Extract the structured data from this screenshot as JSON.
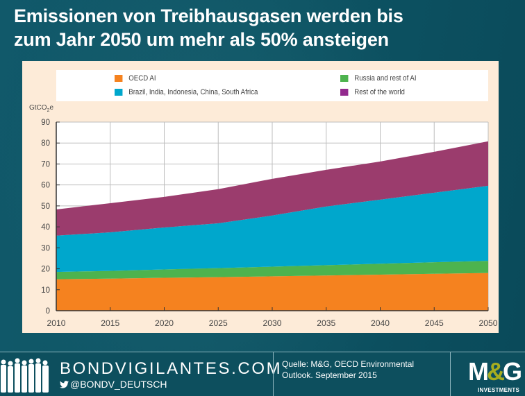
{
  "title_line1": "Emissionen von Treibhausgasen werden bis",
  "title_line2": "zum Jahr 2050 um mehr als 50% ansteigen",
  "chart_data": {
    "type": "area",
    "stacked": true,
    "title": "",
    "ylabel": "GtCO2e",
    "ylabel_main": "GtCO",
    "ylabel_sub": "2",
    "ylabel_suffix": "e",
    "xlabel": "",
    "ylim": [
      0,
      90
    ],
    "yticks": [
      0,
      10,
      20,
      30,
      40,
      50,
      60,
      70,
      80,
      90
    ],
    "xlim": [
      2010,
      2050
    ],
    "x": [
      2010,
      2015,
      2020,
      2025,
      2030,
      2035,
      2040,
      2045,
      2050
    ],
    "grid": true,
    "legend_position": "top",
    "series": [
      {
        "name": "OECD AI",
        "color": "#f5821f",
        "legend_color": "#f5821f",
        "values": [
          15.0,
          15.3,
          15.7,
          16.0,
          16.4,
          16.8,
          17.2,
          17.6,
          18.0
        ]
      },
      {
        "name": "Russia and rest of AI",
        "color": "#4db34e",
        "legend_color": "#4db34e",
        "values": [
          3.5,
          3.7,
          4.0,
          4.3,
          4.6,
          4.9,
          5.2,
          5.5,
          5.8
        ]
      },
      {
        "name": "Brazil, India, Indonesia, China, South Africa",
        "color": "#00a7cc",
        "legend_color": "#00a7cc",
        "values": [
          17.3,
          18.4,
          20.0,
          21.4,
          24.4,
          28.0,
          30.6,
          33.2,
          35.8
        ]
      },
      {
        "name": "Rest of the world",
        "color": "#9b3c6d",
        "legend_color": "#932a8e",
        "values": [
          12.5,
          13.9,
          14.6,
          16.3,
          17.5,
          17.5,
          18.2,
          19.5,
          21.2
        ]
      }
    ],
    "totals": [
      48.3,
      51.3,
      54.3,
      58.0,
      62.9,
      67.2,
      71.2,
      75.8,
      80.8
    ]
  },
  "legend": [
    {
      "label": "OECD AI",
      "color": "#f5821f"
    },
    {
      "label": "Russia and rest of AI",
      "color": "#4db34e"
    },
    {
      "label": "Brazil, India, Indonesia, China, South Africa",
      "color": "#00a7cc"
    },
    {
      "label": "Rest of the world",
      "color": "#932a8e"
    }
  ],
  "footer": {
    "site": "BONDVIGILANTES.COM",
    "twitter_icon": "twitter-bird-icon",
    "twitter": "@BONDV_DEUTSCH",
    "source_line1": "Quelle: M&G,  OECD Environmental",
    "source_line2": "Outlook. September 2015",
    "logo_text_m": "M",
    "logo_text_amp": "&",
    "logo_text_g": "G",
    "logo_sub": "INVESTMENTS"
  }
}
